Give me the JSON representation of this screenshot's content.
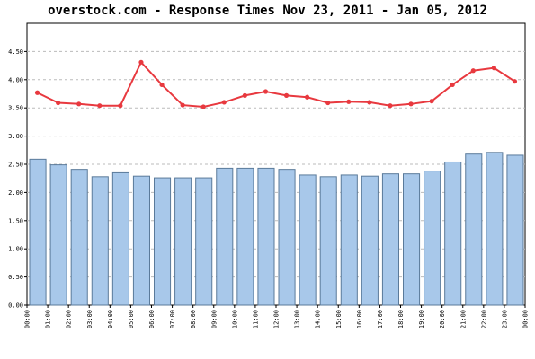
{
  "chart_data": {
    "type": "bar",
    "title": "overstock.com - Response Times Nov 23, 2011 - Jan 05, 2012",
    "xlabel": "",
    "ylabel": "",
    "ylim": [
      0,
      5.0
    ],
    "y_ticks": [
      "0.00",
      "0.50",
      "1.00",
      "1.50",
      "2.00",
      "2.50",
      "3.00",
      "3.50",
      "4.00",
      "4.50"
    ],
    "y_tick_values": [
      0,
      0.5,
      1.0,
      1.5,
      2.0,
      2.5,
      3.0,
      3.5,
      4.0,
      4.5
    ],
    "x_ticks": [
      "00:00",
      "01:00",
      "02:00",
      "03:00",
      "04:00",
      "05:00",
      "06:00",
      "07:00",
      "08:00",
      "09:00",
      "10:00",
      "11:00",
      "12:00",
      "13:00",
      "14:00",
      "15:00",
      "16:00",
      "17:00",
      "18:00",
      "19:00",
      "20:00",
      "21:00",
      "22:00",
      "23:00",
      "00:00"
    ],
    "grid": true,
    "series": [
      {
        "type": "bar",
        "color": "#a8c8ea",
        "values": [
          2.59,
          2.49,
          2.41,
          2.28,
          2.35,
          2.29,
          2.26,
          2.26,
          2.26,
          2.43,
          2.43,
          2.43,
          2.41,
          2.31,
          2.28,
          2.31,
          2.29,
          2.33,
          2.33,
          2.38,
          2.54,
          2.68,
          2.71,
          2.66
        ]
      },
      {
        "type": "line",
        "color": "#e8393f",
        "values": [
          3.77,
          3.59,
          3.57,
          3.54,
          3.54,
          4.31,
          3.91,
          3.55,
          3.52,
          3.6,
          3.72,
          3.79,
          3.72,
          3.69,
          3.59,
          3.61,
          3.6,
          3.54,
          3.57,
          3.62,
          3.91,
          4.16,
          4.21,
          3.97
        ]
      }
    ]
  }
}
